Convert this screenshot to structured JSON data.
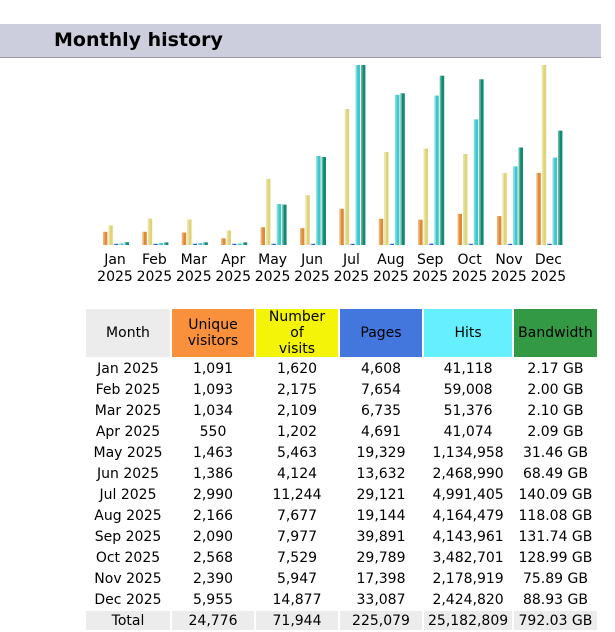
{
  "page": {
    "title": "Monthly history"
  },
  "colors": {
    "unique": "#e08a34",
    "visits": "#e0d47a",
    "pages": "#2255cc",
    "hits": "#3cc8cc",
    "bandwidth": "#108a70"
  },
  "chart_data": {
    "type": "bar",
    "title": "Monthly history",
    "categories": [
      "Jan 2025",
      "Feb 2025",
      "Mar 2025",
      "Apr 2025",
      "May 2025",
      "Jun 2025",
      "Jul 2025",
      "Aug 2025",
      "Sep 2025",
      "Oct 2025",
      "Nov 2025",
      "Dec 2025"
    ],
    "month_labels": [
      "Jan",
      "Feb",
      "Mar",
      "Apr",
      "May",
      "Jun",
      "Jul",
      "Aug",
      "Sep",
      "Oct",
      "Nov",
      "Dec"
    ],
    "year_label": "2025",
    "series": [
      {
        "name": "Unique visitors",
        "values": [
          1091,
          1093,
          1034,
          550,
          1463,
          1386,
          2990,
          2166,
          2090,
          2568,
          2390,
          5955
        ]
      },
      {
        "name": "Number of visits",
        "values": [
          1620,
          2175,
          2109,
          1202,
          5463,
          4124,
          11244,
          7677,
          7977,
          7529,
          5947,
          14877
        ]
      },
      {
        "name": "Pages",
        "values": [
          4608,
          7654,
          6735,
          4691,
          19329,
          13632,
          29121,
          19144,
          39891,
          29789,
          17398,
          33087
        ]
      },
      {
        "name": "Hits",
        "values": [
          41118,
          59008,
          51376,
          41074,
          1134958,
          2468990,
          4991405,
          4164479,
          4143961,
          3482701,
          2178919,
          2424820
        ]
      },
      {
        "name": "Bandwidth (GB)",
        "values": [
          2.17,
          2.0,
          2.1,
          2.09,
          31.46,
          68.49,
          140.09,
          118.08,
          131.74,
          128.99,
          75.89,
          88.93
        ]
      }
    ]
  },
  "table": {
    "headers": {
      "month": "Month",
      "unique": [
        "Unique",
        "visitors"
      ],
      "visits": [
        "Number of",
        "visits"
      ],
      "pages": "Pages",
      "hits": "Hits",
      "bandwidth": "Bandwidth"
    },
    "rows": [
      [
        "Jan 2025",
        "1,091",
        "1,620",
        "4,608",
        "41,118",
        "2.17 GB"
      ],
      [
        "Feb 2025",
        "1,093",
        "2,175",
        "7,654",
        "59,008",
        "2.00 GB"
      ],
      [
        "Mar 2025",
        "1,034",
        "2,109",
        "6,735",
        "51,376",
        "2.10 GB"
      ],
      [
        "Apr 2025",
        "550",
        "1,202",
        "4,691",
        "41,074",
        "2.09 GB"
      ],
      [
        "May 2025",
        "1,463",
        "5,463",
        "19,329",
        "1,134,958",
        "31.46 GB"
      ],
      [
        "Jun 2025",
        "1,386",
        "4,124",
        "13,632",
        "2,468,990",
        "68.49 GB"
      ],
      [
        "Jul 2025",
        "2,990",
        "11,244",
        "29,121",
        "4,991,405",
        "140.09 GB"
      ],
      [
        "Aug 2025",
        "2,166",
        "7,677",
        "19,144",
        "4,164,479",
        "118.08 GB"
      ],
      [
        "Sep 2025",
        "2,090",
        "7,977",
        "39,891",
        "4,143,961",
        "131.74 GB"
      ],
      [
        "Oct 2025",
        "2,568",
        "7,529",
        "29,789",
        "3,482,701",
        "128.99 GB"
      ],
      [
        "Nov 2025",
        "2,390",
        "5,947",
        "17,398",
        "2,178,919",
        "75.89 GB"
      ],
      [
        "Dec 2025",
        "5,955",
        "14,877",
        "33,087",
        "2,424,820",
        "88.93 GB"
      ]
    ],
    "total": [
      "Total",
      "24,776",
      "71,944",
      "225,079",
      "25,182,809",
      "792.03 GB"
    ]
  }
}
